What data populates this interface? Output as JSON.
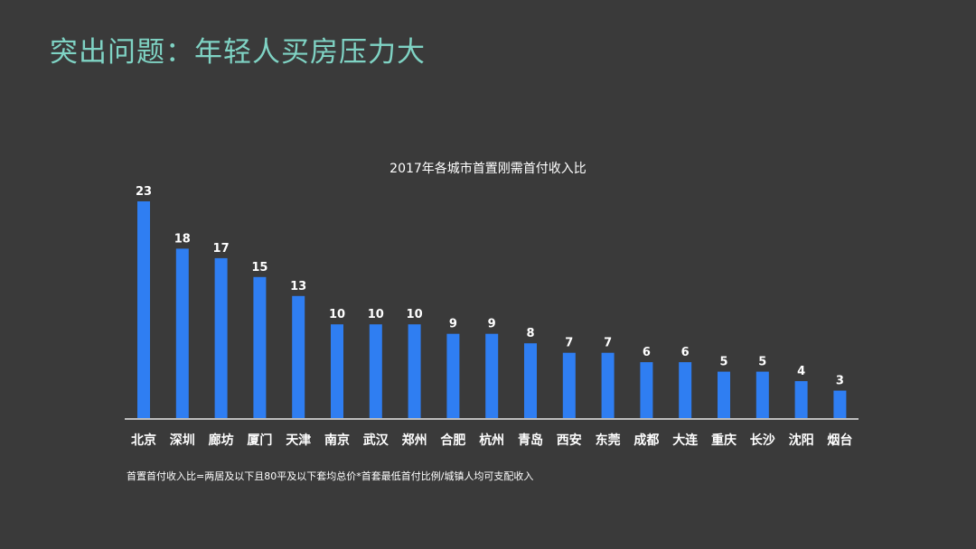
{
  "slide": {
    "title": "突出问题：年轻人买房压力大",
    "footnote": "首置首付收入比=两居及以下且80平及以下套均总价*首套最低首付比例/城镇人均可支配收入"
  },
  "colors": {
    "background": "#3a3a3a",
    "title": "#7fd3c4",
    "bar": "#2f7ef2",
    "axis": "#bdbdbd",
    "text": "#ffffff"
  },
  "chart_data": {
    "type": "bar",
    "title": "2017年各城市首置刚需首付收入比",
    "categories": [
      "北京",
      "深圳",
      "廊坊",
      "厦门",
      "天津",
      "南京",
      "武汉",
      "郑州",
      "合肥",
      "杭州",
      "青岛",
      "西安",
      "东莞",
      "成都",
      "大连",
      "重庆",
      "长沙",
      "沈阳",
      "烟台"
    ],
    "values": [
      23,
      18,
      17,
      15,
      13,
      10,
      10,
      10,
      9,
      9,
      8,
      7,
      7,
      6,
      6,
      5,
      5,
      4,
      3
    ],
    "ylim": [
      0,
      23
    ],
    "grid": false,
    "legend": "none",
    "data_labels": true
  }
}
